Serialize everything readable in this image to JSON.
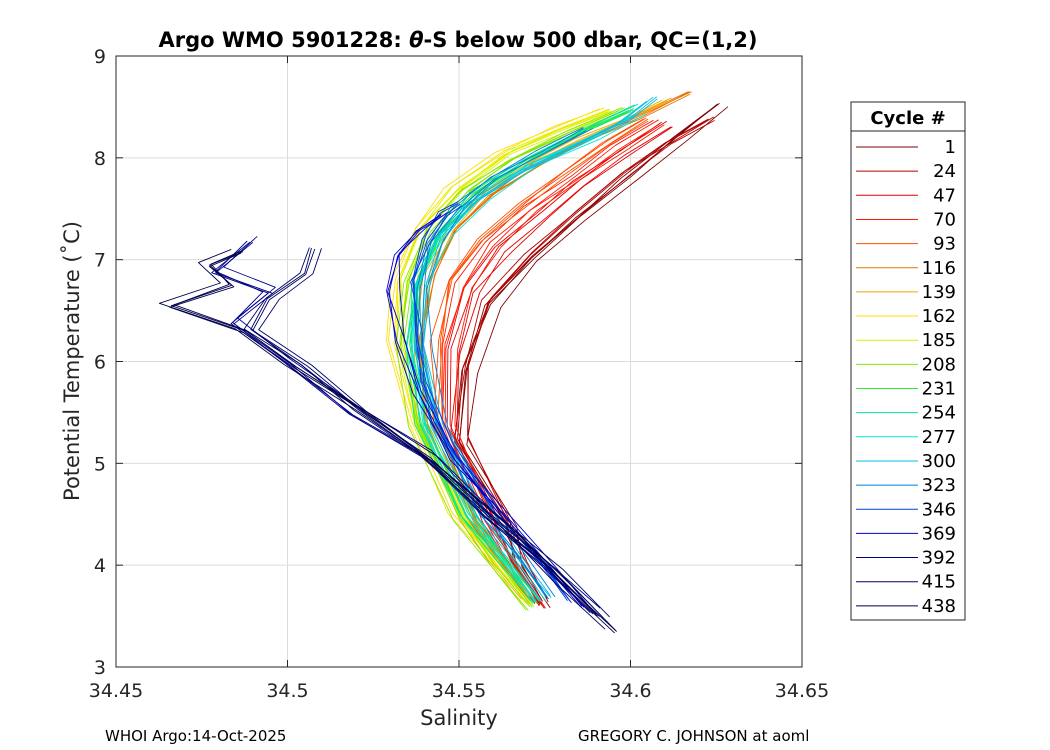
{
  "chart_data": {
    "type": "line",
    "title_prefix": "Argo WMO 5901228: ",
    "title_theta": "θ",
    "title_suffix": "-S below 500 dbar,  QC=(1,2)",
    "xlabel": "Salinity",
    "ylabel": "Potential Temperature (˚C)",
    "xlim": [
      34.45,
      34.65
    ],
    "ylim": [
      3,
      9
    ],
    "xticks": [
      "34.45",
      "34.5",
      "34.55",
      "34.6",
      "34.65"
    ],
    "yticks": [
      "3",
      "4",
      "5",
      "6",
      "7",
      "8",
      "9"
    ],
    "grid": true,
    "legend_title": "Cycle #",
    "legend_position": "right",
    "legend": [
      {
        "label": "1",
        "color": "#800000"
      },
      {
        "label": "24",
        "color": "#b30000"
      },
      {
        "label": "47",
        "color": "#e60000"
      },
      {
        "label": "70",
        "color": "#ff1a00"
      },
      {
        "label": "93",
        "color": "#ff4d00"
      },
      {
        "label": "116",
        "color": "#e67300"
      },
      {
        "label": "139",
        "color": "#f2a500"
      },
      {
        "label": "162",
        "color": "#ffe000"
      },
      {
        "label": "185",
        "color": "#d9f200"
      },
      {
        "label": "208",
        "color": "#8ce600"
      },
      {
        "label": "231",
        "color": "#33e633"
      },
      {
        "label": "254",
        "color": "#00e699"
      },
      {
        "label": "277",
        "color": "#00e6d9"
      },
      {
        "label": "300",
        "color": "#00bfe6"
      },
      {
        "label": "323",
        "color": "#0080d9"
      },
      {
        "label": "346",
        "color": "#0040e6"
      },
      {
        "label": "369",
        "color": "#0000cc"
      },
      {
        "label": "392",
        "color": "#00008c"
      },
      {
        "label": "415",
        "color": "#000066"
      },
      {
        "label": "438",
        "color": "#00004d"
      }
    ],
    "series": [
      {
        "name": "1",
        "color": "#800000",
        "x": [
          34.5752,
          34.568,
          34.565,
          34.551,
          34.5535,
          34.56,
          34.572,
          34.585,
          34.6,
          34.615,
          34.627
        ],
        "y": [
          3.6,
          4.0,
          4.4,
          5.2,
          5.9,
          6.55,
          7.0,
          7.4,
          7.8,
          8.2,
          8.52
        ]
      },
      {
        "name": "24",
        "color": "#b30000",
        "x": [
          34.5745,
          34.567,
          34.563,
          34.55,
          34.552,
          34.558,
          34.57,
          34.583,
          34.598,
          34.611,
          34.623
        ],
        "y": [
          3.65,
          4.05,
          4.45,
          5.25,
          5.95,
          6.6,
          7.05,
          7.45,
          7.85,
          8.15,
          8.38
        ]
      },
      {
        "name": "47",
        "color": "#e60000",
        "x": [
          34.574,
          34.566,
          34.56,
          34.548,
          34.549,
          34.554,
          34.563,
          34.574,
          34.586,
          34.598,
          34.611
        ],
        "y": [
          3.6,
          4.0,
          4.4,
          5.35,
          6.1,
          6.7,
          7.1,
          7.45,
          7.75,
          8.05,
          8.33
        ]
      },
      {
        "name": "70",
        "color": "#ff1a00",
        "x": [
          34.573,
          34.565,
          34.558,
          34.546,
          34.5465,
          34.551,
          34.56,
          34.571,
          34.583,
          34.596,
          34.608
        ],
        "y": [
          3.62,
          4.05,
          4.45,
          5.4,
          6.15,
          6.75,
          7.15,
          7.5,
          7.8,
          8.1,
          8.35
        ]
      },
      {
        "name": "93",
        "color": "#ff4d00",
        "x": [
          34.572,
          34.563,
          34.556,
          34.544,
          34.544,
          34.548,
          34.557,
          34.569,
          34.581,
          34.594,
          34.605
        ],
        "y": [
          3.65,
          4.05,
          4.45,
          5.4,
          6.2,
          6.8,
          7.2,
          7.55,
          7.85,
          8.15,
          8.38
        ]
      },
      {
        "name": "116",
        "color": "#e67300",
        "x": [
          34.571,
          34.562,
          34.554,
          34.542,
          34.54,
          34.543,
          34.55,
          34.56,
          34.574,
          34.589,
          34.603,
          34.618
        ],
        "y": [
          3.65,
          4.05,
          4.45,
          5.4,
          6.2,
          6.85,
          7.3,
          7.65,
          7.95,
          8.2,
          8.4,
          8.65
        ]
      },
      {
        "name": "139",
        "color": "#f2a500",
        "x": [
          34.57,
          34.561,
          34.552,
          34.54,
          34.538,
          34.54,
          34.547,
          34.557,
          34.571,
          34.586,
          34.6,
          34.611
        ],
        "y": [
          3.68,
          4.08,
          4.48,
          5.4,
          6.2,
          6.85,
          7.3,
          7.65,
          7.95,
          8.2,
          8.4,
          8.58
        ]
      },
      {
        "name": "162",
        "color": "#ffe000",
        "x": [
          34.569,
          34.559,
          34.549,
          34.536,
          34.53,
          34.531,
          34.537,
          34.547,
          34.562,
          34.578,
          34.592
        ],
        "y": [
          3.62,
          4.05,
          4.5,
          5.4,
          6.2,
          6.8,
          7.3,
          7.7,
          8.05,
          8.3,
          8.48
        ]
      },
      {
        "name": "185",
        "color": "#d9f200",
        "x": [
          34.57,
          34.56,
          34.55,
          34.537,
          34.532,
          34.533,
          34.539,
          34.549,
          34.564,
          34.58,
          34.593
        ],
        "y": [
          3.6,
          4.02,
          4.48,
          5.4,
          6.2,
          6.8,
          7.3,
          7.7,
          8.05,
          8.28,
          8.45
        ]
      },
      {
        "name": "208",
        "color": "#8ce600",
        "x": [
          34.571,
          34.561,
          34.551,
          34.538,
          34.534,
          34.535,
          34.542,
          34.552,
          34.567,
          34.583,
          34.598
        ],
        "y": [
          3.58,
          4.0,
          4.45,
          5.38,
          6.18,
          6.8,
          7.3,
          7.68,
          8.0,
          8.25,
          8.48
        ]
      },
      {
        "name": "231",
        "color": "#33e633",
        "x": [
          34.572,
          34.562,
          34.552,
          34.539,
          34.535,
          34.537,
          34.544,
          34.554,
          34.569,
          34.585,
          34.599
        ],
        "y": [
          3.62,
          4.05,
          4.48,
          5.38,
          6.18,
          6.78,
          7.28,
          7.66,
          7.98,
          8.25,
          8.45
        ]
      },
      {
        "name": "254",
        "color": "#00e699",
        "x": [
          34.573,
          34.563,
          34.553,
          34.54,
          34.536,
          34.538,
          34.545,
          34.556,
          34.571,
          34.587,
          34.602
        ],
        "y": [
          3.64,
          4.06,
          4.48,
          5.38,
          6.15,
          6.75,
          7.25,
          7.65,
          7.98,
          8.25,
          8.5
        ]
      },
      {
        "name": "277",
        "color": "#00e6d9",
        "x": [
          34.574,
          34.565,
          34.555,
          34.541,
          34.537,
          34.539,
          34.546,
          34.557,
          34.572,
          34.588,
          34.603
        ],
        "y": [
          3.66,
          4.08,
          4.5,
          5.38,
          6.15,
          6.75,
          7.25,
          7.62,
          7.95,
          8.2,
          8.45
        ]
      },
      {
        "name": "300",
        "color": "#00bfe6",
        "x": [
          34.575,
          34.566,
          34.557,
          34.543,
          34.538,
          34.539,
          34.544,
          34.553,
          34.567,
          34.582,
          34.597,
          34.606
        ],
        "y": [
          3.68,
          4.08,
          4.5,
          5.38,
          6.15,
          6.75,
          7.2,
          7.55,
          7.85,
          8.1,
          8.35,
          8.58
        ]
      },
      {
        "name": "323",
        "color": "#0080d9",
        "x": [
          34.577,
          34.568,
          34.558,
          34.545,
          34.54,
          34.54,
          34.543,
          34.55,
          34.561,
          34.575,
          34.588
        ],
        "y": [
          3.68,
          4.08,
          4.5,
          5.35,
          6.1,
          6.7,
          7.15,
          7.5,
          7.8,
          8.05,
          8.28
        ]
      },
      {
        "name": "346",
        "color": "#0040e6",
        "x": [
          34.582,
          34.572,
          34.561,
          34.547,
          34.54,
          34.538,
          34.536,
          34.54,
          34.545,
          34.55
        ],
        "y": [
          3.65,
          4.08,
          4.52,
          5.2,
          5.8,
          6.3,
          6.8,
          7.2,
          7.45,
          7.55
        ]
      },
      {
        "name": "369",
        "color": "#0000cc",
        "x": [
          34.586,
          34.576,
          34.564,
          34.548,
          34.538,
          34.533,
          34.53,
          34.532,
          34.538,
          34.545
        ],
        "y": [
          3.6,
          4.02,
          4.45,
          5.05,
          5.7,
          6.2,
          6.7,
          7.05,
          7.3,
          7.45
        ]
      },
      {
        "name": "392",
        "color": "#00008c",
        "x": [
          34.59,
          34.576,
          34.558,
          34.54,
          34.52,
          34.5,
          34.485,
          34.495,
          34.48,
          34.49
        ],
        "y": [
          3.55,
          4.0,
          4.5,
          5.1,
          5.5,
          6.0,
          6.4,
          6.7,
          6.9,
          7.2
        ]
      },
      {
        "name": "415",
        "color": "#000066",
        "x": [
          34.592,
          34.578,
          34.56,
          34.542,
          34.522,
          34.505,
          34.49,
          34.495,
          34.505,
          34.508
        ],
        "y": [
          3.48,
          3.95,
          4.45,
          5.05,
          5.5,
          5.95,
          6.3,
          6.6,
          6.85,
          7.1
        ]
      },
      {
        "name": "438",
        "color": "#00004d",
        "x": [
          34.594,
          34.58,
          34.562,
          34.542,
          34.521,
          34.5,
          34.485,
          34.465,
          34.482,
          34.476,
          34.485
        ],
        "y": [
          3.35,
          3.8,
          4.4,
          5.0,
          5.5,
          5.95,
          6.3,
          6.55,
          6.75,
          6.95,
          7.08
        ]
      }
    ]
  },
  "footer": {
    "left": "WHOI Argo:14-Oct-2025",
    "right": "GREGORY C. JOHNSON at aoml"
  }
}
